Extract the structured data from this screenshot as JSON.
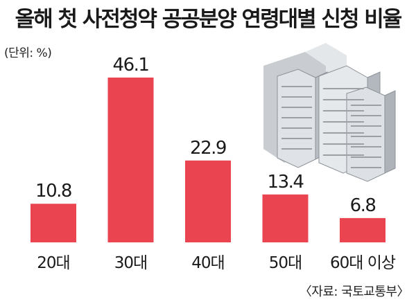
{
  "title": "올해 첫 사전청약 공공분양 연령대별 신청 비율",
  "unit": "(단위: %)",
  "source": "〈자료: 국토교통부〉",
  "colors": {
    "bar": "#e9444f",
    "background": "#ffffff",
    "building": "#d9dde2"
  },
  "chart_data": {
    "type": "bar",
    "title": "올해 첫 사전청약 공공분양 연령대별 신청 비율",
    "categories": [
      "20대",
      "30대",
      "40대",
      "50대",
      "60대 이상"
    ],
    "values": [
      10.8,
      46.1,
      22.9,
      13.4,
      6.8
    ],
    "value_labels": [
      "10.8",
      "46.1",
      "22.9",
      "13.4",
      "6.8"
    ],
    "ylim": [
      0,
      46.1
    ],
    "xlabel": "",
    "ylabel": "",
    "grid": false,
    "legend": "none"
  }
}
